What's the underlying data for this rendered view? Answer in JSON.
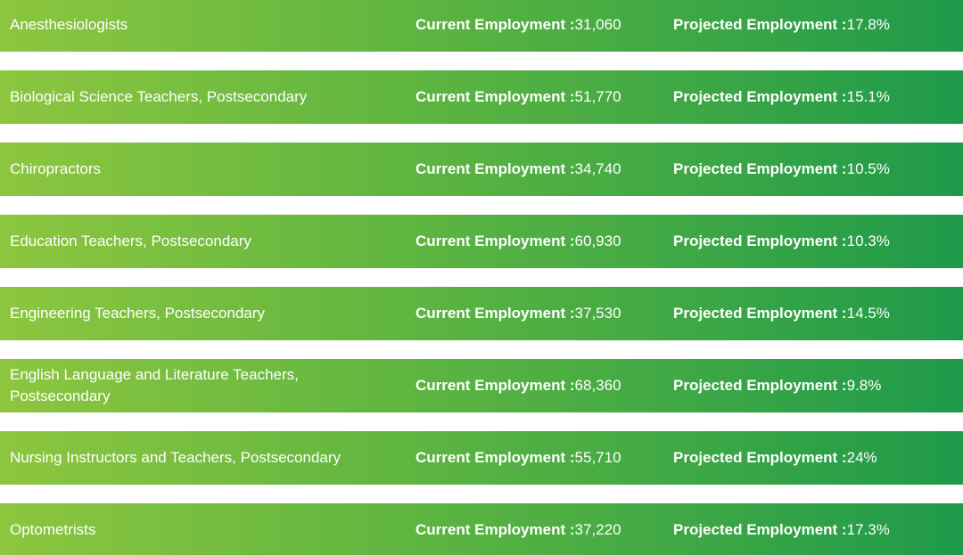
{
  "labels": {
    "current": "Current Employment : ",
    "projected": "Projected Employment : "
  },
  "rows": [
    {
      "occupation": "Anesthesiologists",
      "current": "31,060",
      "projected": "17.8%"
    },
    {
      "occupation": "Biological Science Teachers, Postsecondary",
      "current": "51,770",
      "projected": "15.1%"
    },
    {
      "occupation": "Chiropractors",
      "current": "34,740",
      "projected": "10.5%"
    },
    {
      "occupation": "Education Teachers, Postsecondary",
      "current": "60,930",
      "projected": "10.3%"
    },
    {
      "occupation": "Engineering Teachers, Postsecondary",
      "current": "37,530",
      "projected": "14.5%"
    },
    {
      "occupation": "English Language and Literature Teachers, Postsecondary",
      "current": "68,360",
      "projected": "9.8%"
    },
    {
      "occupation": "Nursing Instructors and Teachers, Postsecondary",
      "current": "55,710",
      "projected": "24%"
    },
    {
      "occupation": "Optometrists",
      "current": "37,220",
      "projected": "17.3%"
    }
  ],
  "colors": {
    "gradient_start": "#8dc63f",
    "gradient_mid": "#5cb440",
    "gradient_end": "#1e9a4a",
    "text": "#ffffff"
  }
}
